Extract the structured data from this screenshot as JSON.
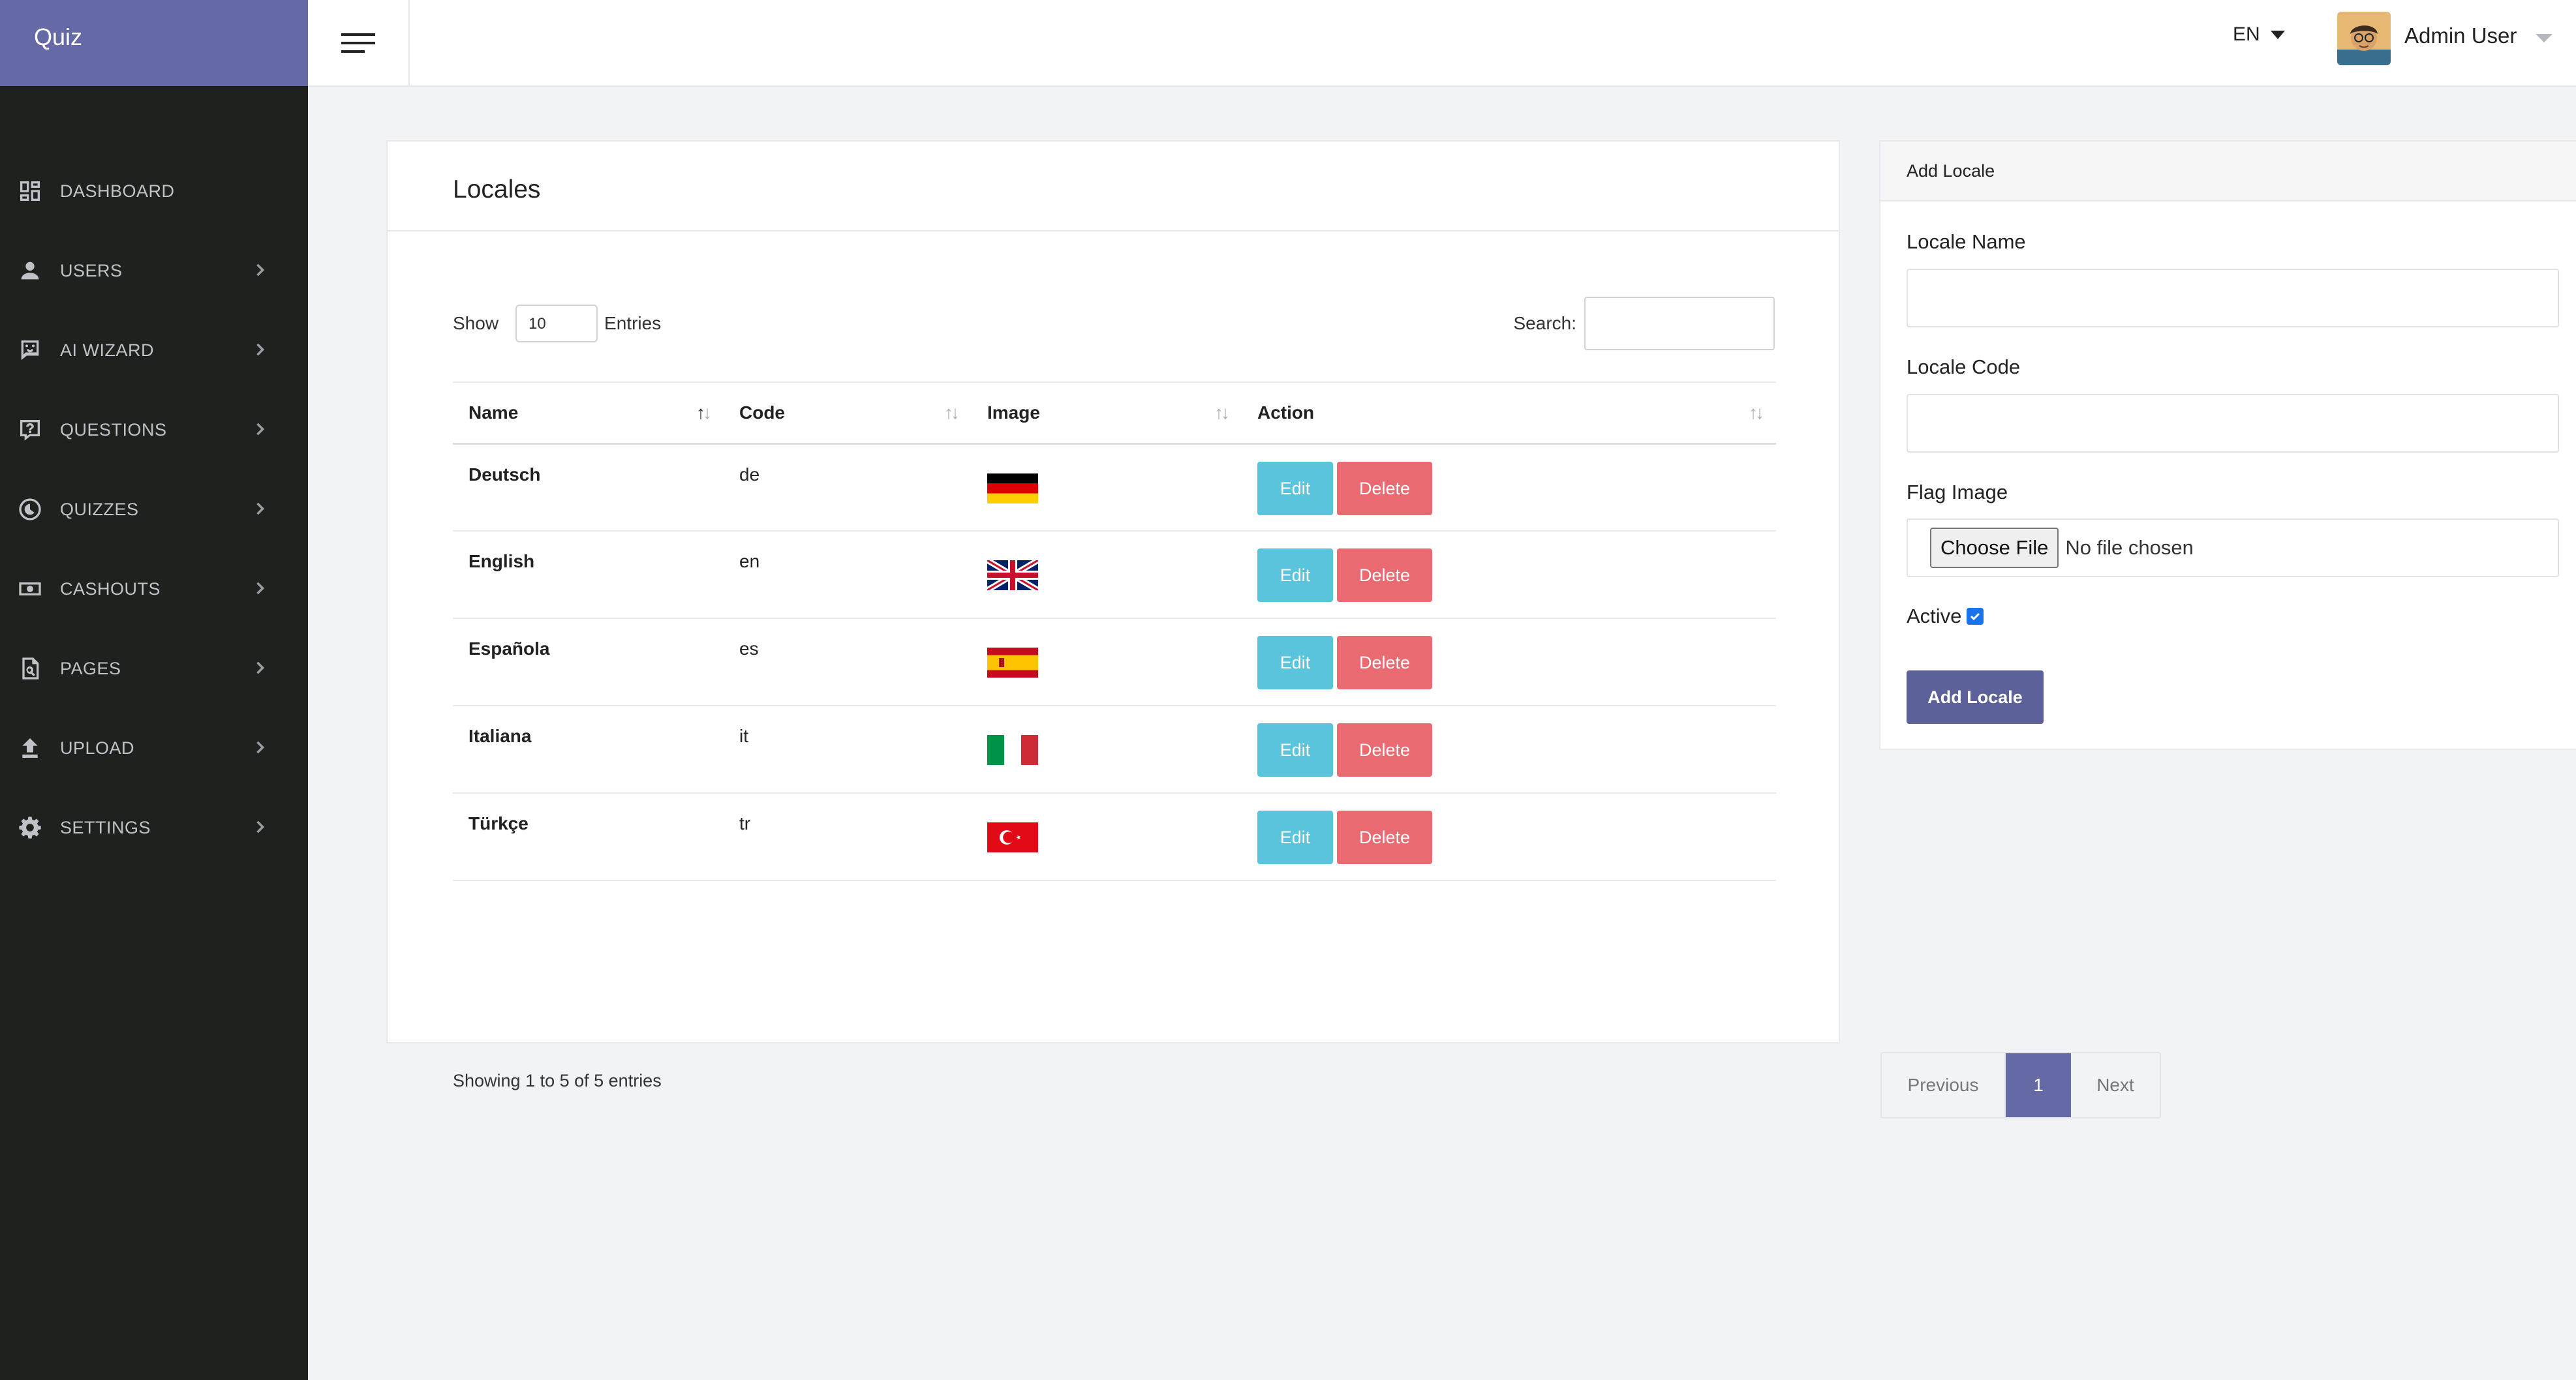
{
  "brand": "Quiz",
  "sidebar": {
    "items": [
      {
        "label": "DASHBOARD",
        "icon": "dashboard-icon",
        "has_submenu": false
      },
      {
        "label": "USERS",
        "icon": "person-icon",
        "has_submenu": true
      },
      {
        "label": "AI WIZARD",
        "icon": "ai-wizard-icon",
        "has_submenu": true
      },
      {
        "label": "QUESTIONS",
        "icon": "question-icon",
        "has_submenu": true
      },
      {
        "label": "QUIZZES",
        "icon": "quiz-icon",
        "has_submenu": true
      },
      {
        "label": "CASHOUTS",
        "icon": "money-icon",
        "has_submenu": true
      },
      {
        "label": "PAGES",
        "icon": "page-search-icon",
        "has_submenu": true
      },
      {
        "label": "UPLOAD",
        "icon": "upload-icon",
        "has_submenu": true
      },
      {
        "label": "SETTINGS",
        "icon": "gear-icon",
        "has_submenu": true
      }
    ]
  },
  "header": {
    "language": "EN",
    "user_name": "Admin User"
  },
  "locales_card": {
    "title": "Locales",
    "show_label": "Show",
    "entries_value": "10",
    "entries_label": "Entries",
    "search_label": "Search:",
    "columns": [
      "Name",
      "Code",
      "Image",
      "Action"
    ],
    "rows": [
      {
        "name": "Deutsch",
        "code": "de",
        "flag": "germany-flag"
      },
      {
        "name": "English",
        "code": "en",
        "flag": "uk-flag"
      },
      {
        "name": "Española",
        "code": "es",
        "flag": "spain-flag"
      },
      {
        "name": "Italiana",
        "code": "it",
        "flag": "italy-flag"
      },
      {
        "name": "Türkçe",
        "code": "tr",
        "flag": "turkey-flag"
      }
    ],
    "edit_label": "Edit",
    "delete_label": "Delete",
    "info": "Showing 1 to 5 of 5 entries",
    "pagination": {
      "previous": "Previous",
      "current": "1",
      "next": "Next"
    }
  },
  "add_locale": {
    "title": "Add Locale",
    "name_label": "Locale Name",
    "code_label": "Locale Code",
    "flag_label": "Flag Image",
    "file_button": "Choose File",
    "file_status": "No file chosen",
    "active_label": "Active",
    "active_checked": true,
    "submit_label": "Add Locale"
  },
  "colors": {
    "brand": "#6569a6",
    "sidebar": "#1f211f",
    "edit": "#5bc4dd",
    "delete": "#ea6a72",
    "primary": "#5c6199"
  }
}
